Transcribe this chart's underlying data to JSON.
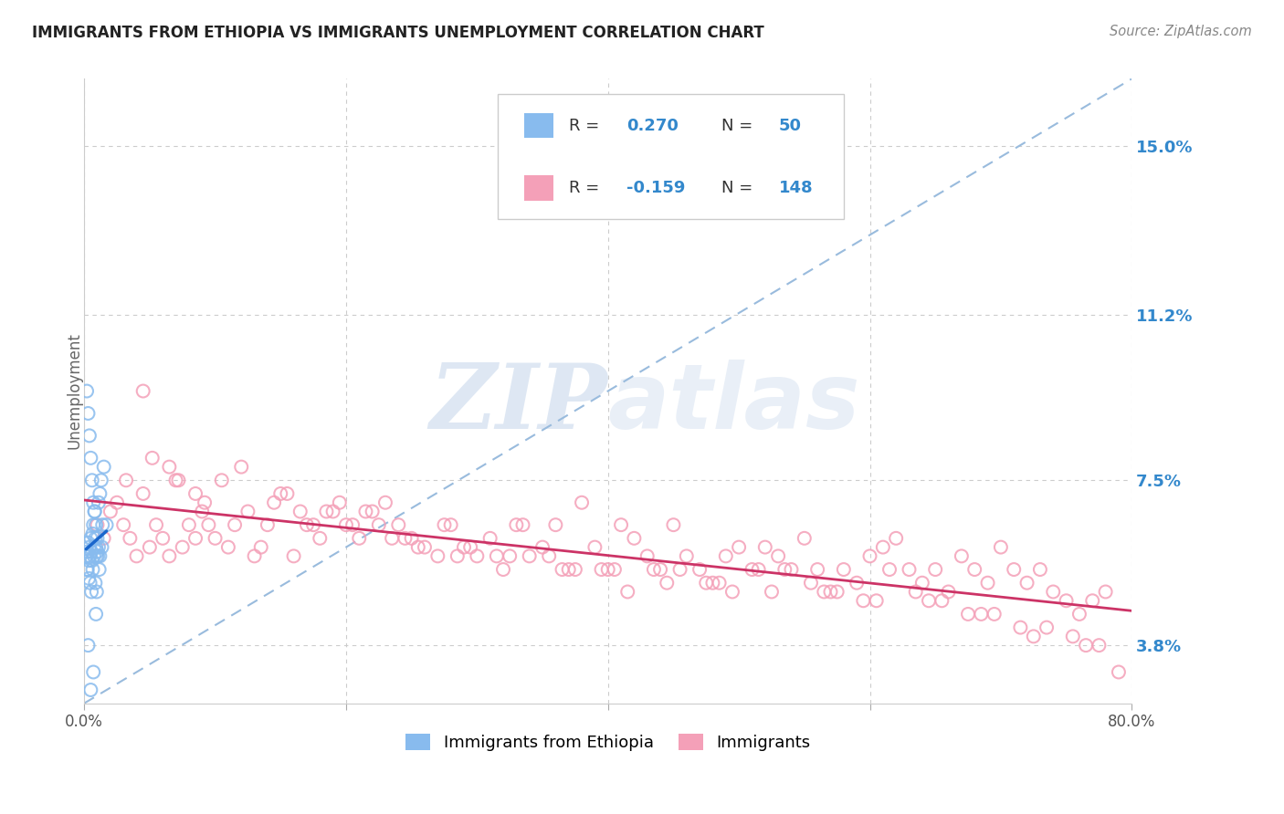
{
  "title": "IMMIGRANTS FROM ETHIOPIA VS IMMIGRANTS UNEMPLOYMENT CORRELATION CHART",
  "source": "Source: ZipAtlas.com",
  "ylabel": "Unemployment",
  "ytick_values": [
    3.8,
    7.5,
    11.2,
    15.0
  ],
  "color_blue": "#88bbee",
  "color_pink": "#f4a0b8",
  "color_blue_text": "#3388cc",
  "color_pink_text": "#3388cc",
  "color_r_label": "#444444",
  "trendline_blue_color": "#1a66cc",
  "trendline_pink_color": "#cc3366",
  "dashed_line_color": "#99bbdd",
  "watermark_color": "#c8d8ec",
  "background_color": "#ffffff",
  "grid_color": "#cccccc",
  "xlim": [
    0.0,
    80.0
  ],
  "ylim": [
    2.5,
    16.5
  ],
  "blue_x": [
    0.15,
    0.2,
    0.25,
    0.3,
    0.35,
    0.4,
    0.45,
    0.5,
    0.55,
    0.6,
    0.65,
    0.7,
    0.75,
    0.8,
    0.85,
    0.9,
    0.95,
    1.0,
    1.1,
    1.2,
    1.3,
    1.5,
    1.7,
    0.2,
    0.3,
    0.4,
    0.5,
    0.6,
    0.7,
    0.8,
    0.9,
    1.0,
    1.1,
    1.2,
    1.4,
    0.25,
    0.35,
    0.45,
    0.55,
    0.65,
    0.75,
    0.85,
    0.95,
    1.05,
    1.15,
    1.35,
    0.3,
    0.5,
    0.7,
    0.9
  ],
  "blue_y": [
    5.8,
    5.5,
    5.9,
    6.1,
    5.7,
    6.0,
    5.8,
    6.2,
    5.9,
    5.7,
    6.3,
    6.5,
    6.0,
    6.8,
    6.2,
    6.0,
    5.8,
    5.9,
    7.0,
    7.2,
    7.5,
    7.8,
    6.5,
    9.5,
    9.0,
    8.5,
    8.0,
    7.5,
    7.0,
    6.8,
    6.5,
    6.2,
    6.0,
    5.8,
    6.5,
    5.5,
    5.3,
    5.2,
    5.0,
    5.5,
    5.8,
    5.2,
    5.0,
    5.8,
    5.5,
    6.0,
    3.8,
    2.8,
    3.2,
    4.5
  ],
  "pink_x": [
    1.0,
    1.5,
    2.0,
    2.5,
    3.0,
    3.5,
    4.0,
    4.5,
    5.0,
    5.5,
    6.0,
    6.5,
    7.0,
    7.5,
    8.0,
    8.5,
    9.0,
    9.5,
    10.0,
    11.0,
    12.0,
    13.0,
    14.0,
    15.0,
    16.0,
    17.0,
    18.0,
    19.0,
    20.0,
    21.0,
    22.0,
    23.0,
    24.0,
    25.0,
    26.0,
    27.0,
    28.0,
    29.0,
    30.0,
    31.0,
    32.0,
    33.0,
    34.0,
    35.0,
    36.0,
    37.0,
    38.0,
    39.0,
    40.0,
    41.0,
    42.0,
    43.0,
    44.0,
    45.0,
    46.0,
    47.0,
    48.0,
    49.0,
    50.0,
    51.0,
    52.0,
    53.0,
    54.0,
    55.0,
    56.0,
    57.0,
    58.0,
    59.0,
    60.0,
    61.0,
    62.0,
    63.0,
    64.0,
    65.0,
    66.0,
    67.0,
    68.0,
    69.0,
    70.0,
    71.0,
    72.0,
    73.0,
    74.0,
    75.0,
    76.0,
    77.0,
    78.0,
    79.0,
    3.2,
    5.2,
    7.2,
    9.2,
    11.5,
    13.5,
    15.5,
    17.5,
    19.5,
    21.5,
    23.5,
    25.5,
    27.5,
    29.5,
    31.5,
    33.5,
    35.5,
    37.5,
    39.5,
    41.5,
    43.5,
    45.5,
    47.5,
    49.5,
    51.5,
    53.5,
    55.5,
    57.5,
    59.5,
    61.5,
    63.5,
    65.5,
    67.5,
    69.5,
    71.5,
    73.5,
    75.5,
    77.5,
    4.5,
    8.5,
    12.5,
    16.5,
    20.5,
    24.5,
    28.5,
    32.5,
    36.5,
    40.5,
    44.5,
    48.5,
    52.5,
    56.5,
    60.5,
    64.5,
    68.5,
    72.5,
    76.5,
    6.5,
    10.5,
    14.5,
    18.5,
    22.5
  ],
  "pink_y": [
    6.5,
    6.2,
    6.8,
    7.0,
    6.5,
    6.2,
    5.8,
    7.2,
    6.0,
    6.5,
    6.2,
    5.8,
    7.5,
    6.0,
    6.5,
    6.2,
    6.8,
    6.5,
    6.2,
    6.0,
    7.8,
    5.8,
    6.5,
    7.2,
    5.8,
    6.5,
    6.2,
    6.8,
    6.5,
    6.2,
    6.8,
    7.0,
    6.5,
    6.2,
    6.0,
    5.8,
    6.5,
    6.0,
    5.8,
    6.2,
    5.5,
    6.5,
    5.8,
    6.0,
    6.5,
    5.5,
    7.0,
    6.0,
    5.5,
    6.5,
    6.2,
    5.8,
    5.5,
    6.5,
    5.8,
    5.5,
    5.2,
    5.8,
    6.0,
    5.5,
    6.0,
    5.8,
    5.5,
    6.2,
    5.5,
    5.0,
    5.5,
    5.2,
    5.8,
    6.0,
    6.2,
    5.5,
    5.2,
    5.5,
    5.0,
    5.8,
    5.5,
    5.2,
    6.0,
    5.5,
    5.2,
    5.5,
    5.0,
    4.8,
    4.5,
    4.8,
    5.0,
    3.2,
    7.5,
    8.0,
    7.5,
    7.0,
    6.5,
    6.0,
    7.2,
    6.5,
    7.0,
    6.8,
    6.2,
    6.0,
    6.5,
    6.0,
    5.8,
    6.5,
    5.8,
    5.5,
    5.5,
    5.0,
    5.5,
    5.5,
    5.2,
    5.0,
    5.5,
    5.5,
    5.2,
    5.0,
    4.8,
    5.5,
    5.0,
    4.8,
    4.5,
    4.5,
    4.2,
    4.2,
    4.0,
    3.8,
    9.5,
    7.2,
    6.8,
    6.8,
    6.5,
    6.2,
    5.8,
    5.8,
    5.5,
    5.5,
    5.2,
    5.2,
    5.0,
    5.0,
    4.8,
    4.8,
    4.5,
    4.0,
    3.8,
    7.8,
    7.5,
    7.0,
    6.8,
    6.5
  ]
}
